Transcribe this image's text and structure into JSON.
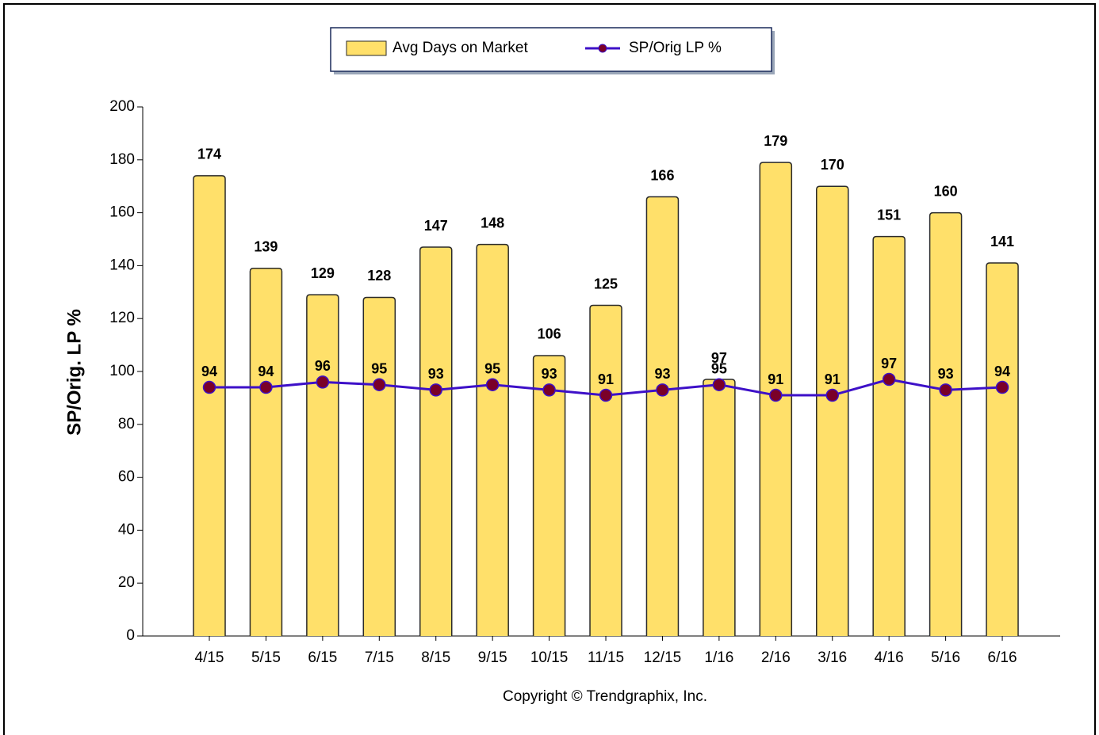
{
  "chart_data": {
    "type": "combo",
    "categories": [
      "4/15",
      "5/15",
      "6/15",
      "7/15",
      "8/15",
      "9/15",
      "10/15",
      "11/15",
      "12/15",
      "1/16",
      "2/16",
      "3/16",
      "4/16",
      "5/16",
      "6/16"
    ],
    "series": [
      {
        "name": "Avg Days on Market",
        "type": "bar",
        "color": "#ffe06a",
        "values": [
          174,
          139,
          129,
          128,
          147,
          148,
          106,
          125,
          166,
          97,
          179,
          170,
          151,
          160,
          141
        ]
      },
      {
        "name": "SP/Orig LP %",
        "type": "line",
        "color": "#3d10c8",
        "marker_color": "#7a0028",
        "values": [
          94,
          94,
          96,
          95,
          93,
          95,
          93,
          91,
          93,
          95,
          91,
          91,
          97,
          93,
          94
        ]
      }
    ],
    "ylim": [
      0,
      200
    ],
    "yticks": [
      0,
      20,
      40,
      60,
      80,
      100,
      120,
      140,
      160,
      180,
      200
    ],
    "y_label": "SP/Orig. LP %",
    "note": "Copyright © Trendgraphix, Inc.",
    "legend": "top",
    "grid": false
  }
}
